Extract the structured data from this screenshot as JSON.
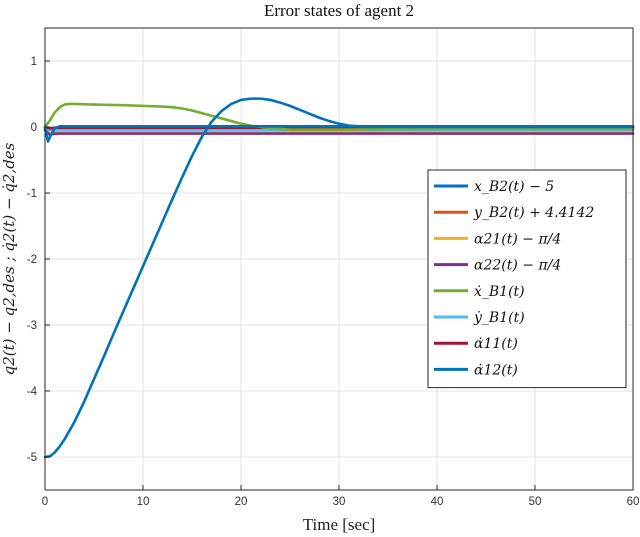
{
  "chart_data": {
    "type": "line",
    "title": "Error states of agent 2",
    "xlabel": "Time [sec]",
    "ylabel": "q2(t) − q2,des ; q̇2(t) − q̇2,des",
    "xlim": [
      0,
      60
    ],
    "ylim": [
      -5.5,
      1.5
    ],
    "xticks": [
      0,
      10,
      20,
      30,
      40,
      50,
      60
    ],
    "yticks": [
      1,
      0,
      -1,
      -2,
      -3,
      -4,
      -5
    ],
    "grid": true,
    "legend_position": "right",
    "series": [
      {
        "name": "x_B2(t) − 5",
        "color": "#0072BD",
        "x": [
          0,
          0.5,
          1,
          1.5,
          2,
          3,
          4,
          5,
          6,
          7,
          8,
          9,
          10,
          11,
          12,
          13,
          14,
          15,
          16,
          17,
          18,
          19,
          20,
          21,
          22,
          23,
          24,
          25,
          26,
          27,
          28,
          29,
          30,
          31,
          32,
          33,
          34,
          40,
          50,
          60
        ],
        "y": [
          -5.0,
          -4.99,
          -4.93,
          -4.84,
          -4.73,
          -4.47,
          -4.16,
          -3.82,
          -3.48,
          -3.13,
          -2.79,
          -2.45,
          -2.11,
          -1.77,
          -1.43,
          -1.09,
          -0.76,
          -0.44,
          -0.15,
          0.08,
          0.24,
          0.35,
          0.41,
          0.43,
          0.43,
          0.41,
          0.37,
          0.32,
          0.26,
          0.2,
          0.14,
          0.09,
          0.05,
          0.02,
          0.01,
          0.0,
          0.0,
          0.0,
          0.0,
          0.0
        ]
      },
      {
        "name": "y_B2(t) + 4.4142",
        "color": "#D95319",
        "x": [
          0,
          1,
          2,
          5,
          10,
          20,
          30,
          40,
          50,
          60
        ],
        "y": [
          -0.04,
          -0.05,
          -0.05,
          -0.05,
          -0.05,
          -0.05,
          -0.05,
          -0.05,
          -0.05,
          -0.05
        ]
      },
      {
        "name": "α21(t) − π/4",
        "color": "#EDB120",
        "x": [
          0,
          0.5,
          1,
          2,
          5,
          10,
          20,
          30,
          40,
          50,
          60
        ],
        "y": [
          -0.05,
          -0.1,
          -0.08,
          -0.07,
          -0.07,
          -0.07,
          -0.07,
          -0.07,
          -0.07,
          -0.07,
          -0.07
        ]
      },
      {
        "name": "α22(t) − π/4",
        "color": "#7E2F8E",
        "x": [
          0,
          0.5,
          1,
          2,
          5,
          10,
          20,
          30,
          40,
          50,
          60
        ],
        "y": [
          -0.05,
          -0.12,
          -0.1,
          -0.1,
          -0.1,
          -0.1,
          -0.1,
          -0.1,
          -0.1,
          -0.1,
          -0.1
        ]
      },
      {
        "name": "ẋ_B1(t)",
        "color": "#77AC30",
        "x": [
          0,
          0.5,
          1,
          1.5,
          2,
          2.5,
          3,
          5,
          8,
          10,
          12,
          13,
          14,
          15,
          16,
          17,
          18,
          19,
          20,
          21,
          22,
          23,
          24,
          25,
          26,
          30,
          40,
          60
        ],
        "y": [
          0.0,
          0.1,
          0.22,
          0.3,
          0.34,
          0.35,
          0.35,
          0.34,
          0.33,
          0.32,
          0.31,
          0.3,
          0.28,
          0.25,
          0.21,
          0.17,
          0.13,
          0.09,
          0.05,
          0.02,
          0.0,
          -0.02,
          -0.03,
          -0.04,
          -0.04,
          -0.04,
          -0.03,
          -0.03
        ]
      },
      {
        "name": "ẏ_B1(t)",
        "color": "#4DBEEE",
        "x": [
          0,
          0.5,
          1,
          5,
          20,
          60
        ],
        "y": [
          -0.03,
          -0.05,
          -0.04,
          -0.04,
          -0.04,
          -0.04
        ]
      },
      {
        "name": "α̇11(t)",
        "color": "#A2142F",
        "x": [
          0,
          0.5,
          1,
          5,
          20,
          60
        ],
        "y": [
          0.0,
          -0.02,
          -0.01,
          -0.01,
          -0.01,
          -0.01
        ]
      },
      {
        "name": "α̇12(t)",
        "color": "#0072BD",
        "x": [
          0,
          0.3,
          0.6,
          1,
          1.5,
          2,
          5,
          20,
          60
        ],
        "y": [
          0.0,
          -0.22,
          -0.12,
          -0.02,
          0.01,
          0.01,
          0.01,
          0.01,
          0.01
        ]
      }
    ]
  }
}
